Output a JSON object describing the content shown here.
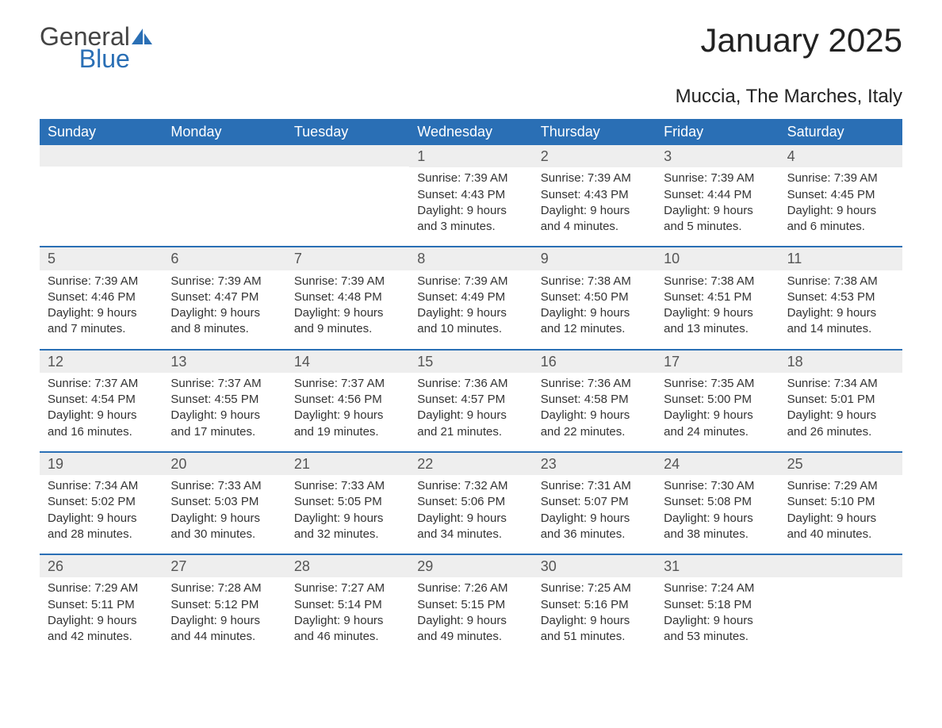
{
  "brand": {
    "line1": "General",
    "line2": "Blue"
  },
  "title": "January 2025",
  "subtitle": "Muccia, The Marches, Italy",
  "colors": {
    "header_bg": "#2a6fb5",
    "header_text": "#ffffff",
    "daynum_bg": "#eeeeee",
    "daynum_border": "#2a6fb5",
    "body_bg": "#ffffff",
    "text": "#333333"
  },
  "typography": {
    "title_fontsize": 42,
    "subtitle_fontsize": 24,
    "dow_fontsize": 18,
    "daynum_fontsize": 18,
    "body_fontsize": 15
  },
  "dow": [
    "Sunday",
    "Monday",
    "Tuesday",
    "Wednesday",
    "Thursday",
    "Friday",
    "Saturday"
  ],
  "weeks": [
    [
      {
        "day": "",
        "sunrise": "",
        "sunset": "",
        "daylight": ""
      },
      {
        "day": "",
        "sunrise": "",
        "sunset": "",
        "daylight": ""
      },
      {
        "day": "",
        "sunrise": "",
        "sunset": "",
        "daylight": ""
      },
      {
        "day": "1",
        "sunrise": "Sunrise: 7:39 AM",
        "sunset": "Sunset: 4:43 PM",
        "daylight": "Daylight: 9 hours and 3 minutes."
      },
      {
        "day": "2",
        "sunrise": "Sunrise: 7:39 AM",
        "sunset": "Sunset: 4:43 PM",
        "daylight": "Daylight: 9 hours and 4 minutes."
      },
      {
        "day": "3",
        "sunrise": "Sunrise: 7:39 AM",
        "sunset": "Sunset: 4:44 PM",
        "daylight": "Daylight: 9 hours and 5 minutes."
      },
      {
        "day": "4",
        "sunrise": "Sunrise: 7:39 AM",
        "sunset": "Sunset: 4:45 PM",
        "daylight": "Daylight: 9 hours and 6 minutes."
      }
    ],
    [
      {
        "day": "5",
        "sunrise": "Sunrise: 7:39 AM",
        "sunset": "Sunset: 4:46 PM",
        "daylight": "Daylight: 9 hours and 7 minutes."
      },
      {
        "day": "6",
        "sunrise": "Sunrise: 7:39 AM",
        "sunset": "Sunset: 4:47 PM",
        "daylight": "Daylight: 9 hours and 8 minutes."
      },
      {
        "day": "7",
        "sunrise": "Sunrise: 7:39 AM",
        "sunset": "Sunset: 4:48 PM",
        "daylight": "Daylight: 9 hours and 9 minutes."
      },
      {
        "day": "8",
        "sunrise": "Sunrise: 7:39 AM",
        "sunset": "Sunset: 4:49 PM",
        "daylight": "Daylight: 9 hours and 10 minutes."
      },
      {
        "day": "9",
        "sunrise": "Sunrise: 7:38 AM",
        "sunset": "Sunset: 4:50 PM",
        "daylight": "Daylight: 9 hours and 12 minutes."
      },
      {
        "day": "10",
        "sunrise": "Sunrise: 7:38 AM",
        "sunset": "Sunset: 4:51 PM",
        "daylight": "Daylight: 9 hours and 13 minutes."
      },
      {
        "day": "11",
        "sunrise": "Sunrise: 7:38 AM",
        "sunset": "Sunset: 4:53 PM",
        "daylight": "Daylight: 9 hours and 14 minutes."
      }
    ],
    [
      {
        "day": "12",
        "sunrise": "Sunrise: 7:37 AM",
        "sunset": "Sunset: 4:54 PM",
        "daylight": "Daylight: 9 hours and 16 minutes."
      },
      {
        "day": "13",
        "sunrise": "Sunrise: 7:37 AM",
        "sunset": "Sunset: 4:55 PM",
        "daylight": "Daylight: 9 hours and 17 minutes."
      },
      {
        "day": "14",
        "sunrise": "Sunrise: 7:37 AM",
        "sunset": "Sunset: 4:56 PM",
        "daylight": "Daylight: 9 hours and 19 minutes."
      },
      {
        "day": "15",
        "sunrise": "Sunrise: 7:36 AM",
        "sunset": "Sunset: 4:57 PM",
        "daylight": "Daylight: 9 hours and 21 minutes."
      },
      {
        "day": "16",
        "sunrise": "Sunrise: 7:36 AM",
        "sunset": "Sunset: 4:58 PM",
        "daylight": "Daylight: 9 hours and 22 minutes."
      },
      {
        "day": "17",
        "sunrise": "Sunrise: 7:35 AM",
        "sunset": "Sunset: 5:00 PM",
        "daylight": "Daylight: 9 hours and 24 minutes."
      },
      {
        "day": "18",
        "sunrise": "Sunrise: 7:34 AM",
        "sunset": "Sunset: 5:01 PM",
        "daylight": "Daylight: 9 hours and 26 minutes."
      }
    ],
    [
      {
        "day": "19",
        "sunrise": "Sunrise: 7:34 AM",
        "sunset": "Sunset: 5:02 PM",
        "daylight": "Daylight: 9 hours and 28 minutes."
      },
      {
        "day": "20",
        "sunrise": "Sunrise: 7:33 AM",
        "sunset": "Sunset: 5:03 PM",
        "daylight": "Daylight: 9 hours and 30 minutes."
      },
      {
        "day": "21",
        "sunrise": "Sunrise: 7:33 AM",
        "sunset": "Sunset: 5:05 PM",
        "daylight": "Daylight: 9 hours and 32 minutes."
      },
      {
        "day": "22",
        "sunrise": "Sunrise: 7:32 AM",
        "sunset": "Sunset: 5:06 PM",
        "daylight": "Daylight: 9 hours and 34 minutes."
      },
      {
        "day": "23",
        "sunrise": "Sunrise: 7:31 AM",
        "sunset": "Sunset: 5:07 PM",
        "daylight": "Daylight: 9 hours and 36 minutes."
      },
      {
        "day": "24",
        "sunrise": "Sunrise: 7:30 AM",
        "sunset": "Sunset: 5:08 PM",
        "daylight": "Daylight: 9 hours and 38 minutes."
      },
      {
        "day": "25",
        "sunrise": "Sunrise: 7:29 AM",
        "sunset": "Sunset: 5:10 PM",
        "daylight": "Daylight: 9 hours and 40 minutes."
      }
    ],
    [
      {
        "day": "26",
        "sunrise": "Sunrise: 7:29 AM",
        "sunset": "Sunset: 5:11 PM",
        "daylight": "Daylight: 9 hours and 42 minutes."
      },
      {
        "day": "27",
        "sunrise": "Sunrise: 7:28 AM",
        "sunset": "Sunset: 5:12 PM",
        "daylight": "Daylight: 9 hours and 44 minutes."
      },
      {
        "day": "28",
        "sunrise": "Sunrise: 7:27 AM",
        "sunset": "Sunset: 5:14 PM",
        "daylight": "Daylight: 9 hours and 46 minutes."
      },
      {
        "day": "29",
        "sunrise": "Sunrise: 7:26 AM",
        "sunset": "Sunset: 5:15 PM",
        "daylight": "Daylight: 9 hours and 49 minutes."
      },
      {
        "day": "30",
        "sunrise": "Sunrise: 7:25 AM",
        "sunset": "Sunset: 5:16 PM",
        "daylight": "Daylight: 9 hours and 51 minutes."
      },
      {
        "day": "31",
        "sunrise": "Sunrise: 7:24 AM",
        "sunset": "Sunset: 5:18 PM",
        "daylight": "Daylight: 9 hours and 53 minutes."
      },
      {
        "day": "",
        "sunrise": "",
        "sunset": "",
        "daylight": ""
      }
    ]
  ]
}
